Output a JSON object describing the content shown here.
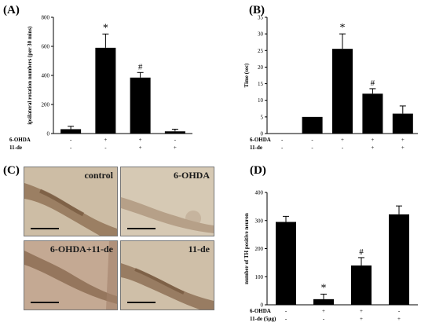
{
  "panels": {
    "a": "(A)",
    "b": "(B)",
    "c": "(C)",
    "d": "(D)"
  },
  "micrographs": [
    {
      "label": "control",
      "tone": "#c9b79d"
    },
    {
      "label": "6-OHDA",
      "tone": "#d4c6b0"
    },
    {
      "label": "6-OHDA+11-de",
      "tone": "#c7ad96"
    },
    {
      "label": "11-de",
      "tone": "#cdbca3"
    }
  ],
  "chart_data": [
    {
      "id": "A",
      "type": "bar",
      "ylabel": "ipsilateral rotation numbers (per 30 mins)",
      "ylim": [
        0,
        800
      ],
      "yticks": [
        "0",
        "200",
        "400",
        "600",
        "800"
      ],
      "treatments": [
        {
          "name": "6-OHDA",
          "marks": [
            "-",
            "+",
            "+",
            "-"
          ]
        },
        {
          "name": "11-de",
          "marks": [
            "-",
            "-",
            "+",
            "+"
          ]
        }
      ],
      "values": [
        30,
        590,
        385,
        15
      ],
      "errors": [
        20,
        95,
        35,
        15
      ],
      "annotations": [
        "",
        "*",
        "#",
        ""
      ],
      "bar_color": "#000000"
    },
    {
      "id": "B",
      "type": "bar",
      "ylabel": "Time (sec)",
      "ylim": [
        0,
        35
      ],
      "yticks": [
        "0",
        "5",
        "10",
        "15",
        "20",
        "25",
        "30",
        "35"
      ],
      "treatments": [
        {
          "name": "6-OHDA",
          "marks": [
            "-",
            "-",
            "+",
            "+",
            "+"
          ]
        },
        {
          "name": "11-de",
          "marks": [
            "-",
            "-",
            "-",
            "+",
            "+"
          ]
        }
      ],
      "values": [
        0,
        5,
        25.5,
        12,
        6
      ],
      "errors": [
        0,
        0,
        4.5,
        1.5,
        2.3
      ],
      "annotations": [
        "",
        "",
        "*",
        "#",
        ""
      ],
      "bar_color": "#000000"
    },
    {
      "id": "D",
      "type": "bar",
      "ylabel": "number of TH positive neuron",
      "ylim": [
        0,
        400
      ],
      "yticks": [
        "0",
        "100",
        "200",
        "300",
        "400"
      ],
      "treatments": [
        {
          "name": "6-OHDA",
          "marks": [
            "-",
            "+",
            "+",
            "-"
          ]
        },
        {
          "name": "11-de (5μg)",
          "marks": [
            "-",
            "-",
            "+",
            "+"
          ]
        }
      ],
      "values": [
        295,
        20,
        140,
        322
      ],
      "errors": [
        20,
        18,
        28,
        30
      ],
      "annotations": [
        "",
        "*",
        "#",
        ""
      ],
      "bar_color": "#000000"
    }
  ]
}
